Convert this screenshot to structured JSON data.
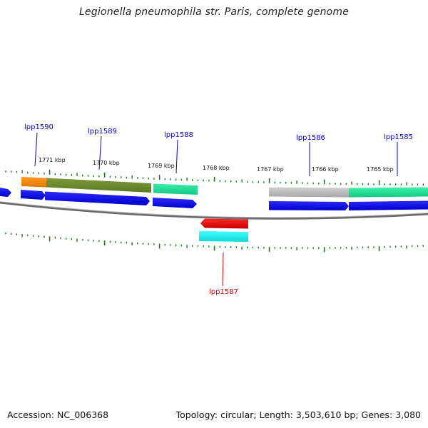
{
  "title": "Legionella pneumophila str. Paris, complete genome",
  "footer": {
    "accession": "Accession: NC_006368",
    "topology": "Topology: circular; Length: 3,503,610 bp; Genes: 3,080"
  },
  "colors": {
    "forward_label": "#0000cc",
    "reverse_label": "#cc0000",
    "cds": "#0000ee",
    "cds_reverse": "#ee0000",
    "tick": "#1a7a1a",
    "backbone": "#7a7a7a"
  },
  "scale": {
    "unit": "kbp",
    "tick_labels": [
      "1771 kbp",
      "1770 kbp",
      "1769 kbp",
      "1768 kbp",
      "1767 kbp",
      "1766 kbp",
      "1765 kbp"
    ]
  },
  "genes": [
    {
      "name": "lpp1590",
      "strand": "forward"
    },
    {
      "name": "lpp1589",
      "strand": "forward"
    },
    {
      "name": "lpp1588",
      "strand": "forward"
    },
    {
      "name": "lpp1586",
      "strand": "forward"
    },
    {
      "name": "lpp1585",
      "strand": "forward"
    },
    {
      "name": "lpp1587",
      "strand": "reverse"
    }
  ]
}
